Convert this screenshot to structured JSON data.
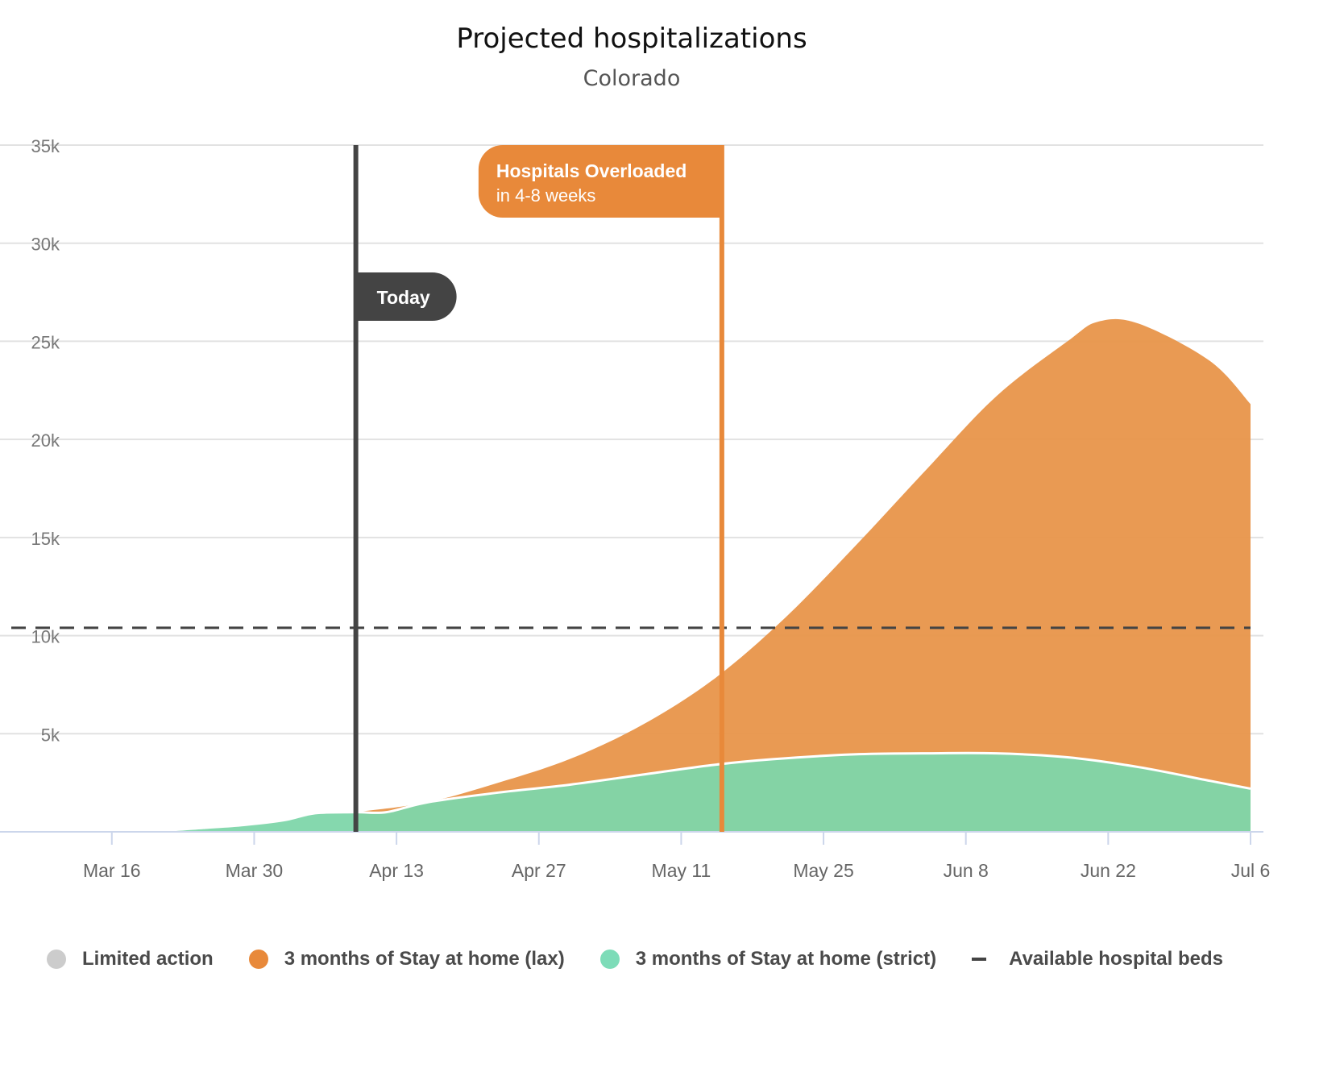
{
  "chart_data": {
    "type": "area",
    "title": "Projected hospitalizations",
    "subtitle": "Colorado",
    "ylim": [
      0,
      35000
    ],
    "y_ticks": [
      {
        "value": 5000,
        "label": "5k"
      },
      {
        "value": 10000,
        "label": "10k"
      },
      {
        "value": 15000,
        "label": "15k"
      },
      {
        "value": 20000,
        "label": "20k"
      },
      {
        "value": 25000,
        "label": "25k"
      },
      {
        "value": 30000,
        "label": "30k"
      },
      {
        "value": 35000,
        "label": "35k"
      }
    ],
    "x_ticks": [
      {
        "date": "2020-03-16",
        "label": "Mar 16"
      },
      {
        "date": "2020-03-30",
        "label": "Mar 30"
      },
      {
        "date": "2020-04-13",
        "label": "Apr 13"
      },
      {
        "date": "2020-04-27",
        "label": "Apr 27"
      },
      {
        "date": "2020-05-11",
        "label": "May 11"
      },
      {
        "date": "2020-05-25",
        "label": "May 25"
      },
      {
        "date": "2020-06-08",
        "label": "Jun 8"
      },
      {
        "date": "2020-06-22",
        "label": "Jun 22"
      },
      {
        "date": "2020-07-06",
        "label": "Jul 6"
      }
    ],
    "x_range": [
      "2020-03-05",
      "2020-07-06"
    ],
    "grid": true,
    "series": [
      {
        "name": "3 months of Stay at home (lax)",
        "color": "#e8954a",
        "points": [
          [
            "2020-04-09",
            1000
          ],
          [
            "2020-04-16",
            1500
          ],
          [
            "2020-04-23",
            2500
          ],
          [
            "2020-04-30",
            3700
          ],
          [
            "2020-05-07",
            5400
          ],
          [
            "2020-05-14",
            7700
          ],
          [
            "2020-05-21",
            10800
          ],
          [
            "2020-05-28",
            14500
          ],
          [
            "2020-06-04",
            18400
          ],
          [
            "2020-06-11",
            22200
          ],
          [
            "2020-06-18",
            25000
          ],
          [
            "2020-06-21",
            26000
          ],
          [
            "2020-06-25",
            25900
          ],
          [
            "2020-07-02",
            24000
          ],
          [
            "2020-07-06",
            21800
          ]
        ]
      },
      {
        "name": "3 months of Stay at home (strict)",
        "color": "#7ed6aa",
        "points": [
          [
            "2020-03-17",
            0
          ],
          [
            "2020-03-21",
            60
          ],
          [
            "2020-03-25",
            200
          ],
          [
            "2020-03-29",
            350
          ],
          [
            "2020-04-02",
            600
          ],
          [
            "2020-04-05",
            950
          ],
          [
            "2020-04-09",
            1000
          ],
          [
            "2020-04-12",
            1000
          ],
          [
            "2020-04-16",
            1500
          ],
          [
            "2020-04-23",
            2000
          ],
          [
            "2020-04-30",
            2400
          ],
          [
            "2020-05-07",
            2900
          ],
          [
            "2020-05-14",
            3400
          ],
          [
            "2020-05-20",
            3700
          ],
          [
            "2020-05-28",
            3950
          ],
          [
            "2020-06-04",
            4000
          ],
          [
            "2020-06-11",
            4000
          ],
          [
            "2020-06-18",
            3800
          ],
          [
            "2020-06-25",
            3300
          ],
          [
            "2020-07-02",
            2600
          ],
          [
            "2020-07-06",
            2200
          ]
        ]
      }
    ],
    "reference_line": {
      "name": "Available hospital beds",
      "value": 10400,
      "style": "dashed",
      "color": "#444444"
    },
    "markers": [
      {
        "date": "2020-04-09",
        "label": "Today",
        "color": "#444444"
      },
      {
        "date": "2020-05-15",
        "label": "Hospitals Overloaded",
        "sublabel": "in 4-8 weeks",
        "color": "#e8893a"
      }
    ],
    "legend": {
      "position": "bottom",
      "items": [
        {
          "label": "Limited action",
          "color": "#cccccc",
          "shape": "dot"
        },
        {
          "label": "3 months of Stay at home (lax)",
          "color": "#e8893a",
          "shape": "dot"
        },
        {
          "label": "3 months of Stay at home (strict)",
          "color": "#7ddcb8",
          "shape": "dot"
        },
        {
          "label": "Available hospital beds",
          "color": "#444444",
          "shape": "dash"
        }
      ]
    }
  }
}
